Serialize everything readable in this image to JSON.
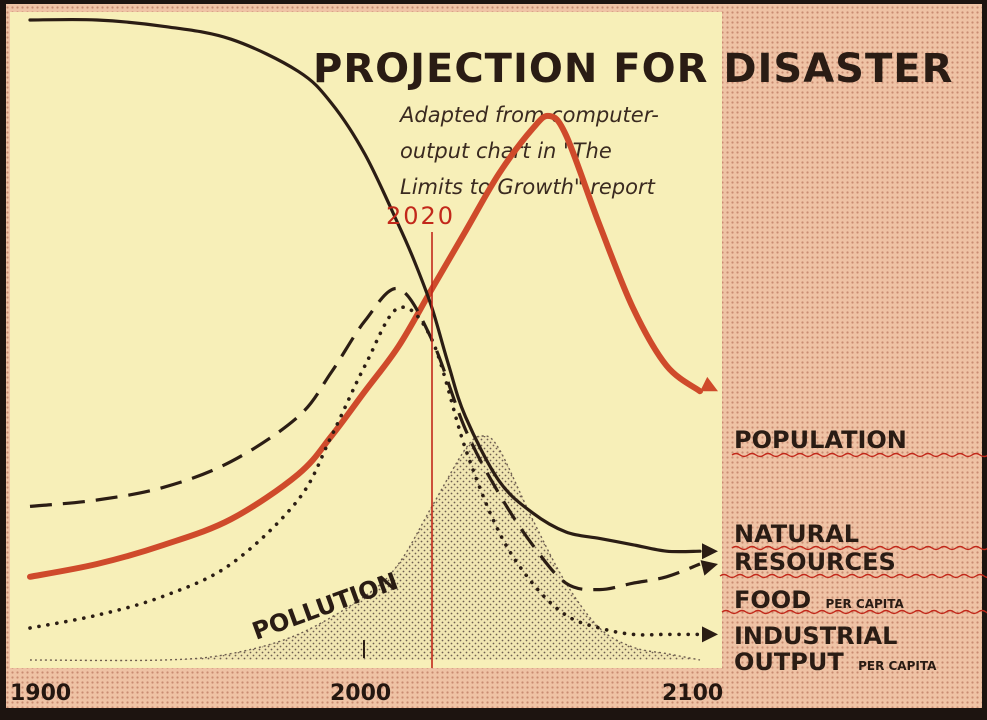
{
  "chart_data": {
    "type": "line",
    "title": "PROJECTION FOR DISASTER",
    "subtitle_lines": [
      "Adapted from computer-",
      "output chart in \"The",
      "Limits to Growth\" report"
    ],
    "x_ticks": [
      "1900",
      "2000",
      "2100"
    ],
    "xlim": [
      1900,
      2100
    ],
    "ylim": [
      0,
      1
    ],
    "grid": false,
    "annotation": {
      "text": "2020",
      "x": 2020
    },
    "series": [
      {
        "name": "POPULATION",
        "style": "solid-thick",
        "color": "#cf4a2b",
        "x": [
          1900,
          1920,
          1940,
          1960,
          1980,
          1990,
          2000,
          2010,
          2020,
          2030,
          2040,
          2050,
          2055,
          2060,
          2070,
          2080,
          2090,
          2100
        ],
        "y": [
          0.13,
          0.15,
          0.18,
          0.22,
          0.29,
          0.35,
          0.42,
          0.49,
          0.58,
          0.67,
          0.76,
          0.83,
          0.85,
          0.82,
          0.68,
          0.55,
          0.46,
          0.42
        ]
      },
      {
        "name": "NATURAL RESOURCES",
        "style": "solid",
        "color": "#2b1d14",
        "x": [
          1900,
          1920,
          1940,
          1960,
          1980,
          1990,
          2000,
          2010,
          2015,
          2020,
          2025,
          2030,
          2040,
          2050,
          2060,
          2070,
          2080,
          2090,
          2100
        ],
        "y": [
          1.0,
          1.0,
          0.99,
          0.97,
          0.92,
          0.87,
          0.79,
          0.68,
          0.62,
          0.55,
          0.46,
          0.38,
          0.28,
          0.23,
          0.2,
          0.19,
          0.18,
          0.17,
          0.17
        ]
      },
      {
        "name": "FOOD",
        "style": "dashed",
        "color": "#2b1d14",
        "x": [
          1900,
          1920,
          1940,
          1960,
          1980,
          1990,
          2000,
          2010,
          2020,
          2030,
          2040,
          2050,
          2060,
          2070,
          2080,
          2090,
          2100
        ],
        "y": [
          0.24,
          0.25,
          0.27,
          0.31,
          0.38,
          0.45,
          0.53,
          0.58,
          0.5,
          0.36,
          0.26,
          0.18,
          0.12,
          0.11,
          0.12,
          0.13,
          0.15
        ]
      },
      {
        "name": "INDUSTRIAL OUTPUT",
        "style": "dotted",
        "color": "#2b1d14",
        "x": [
          1900,
          1920,
          1940,
          1960,
          1980,
          1990,
          2000,
          2010,
          2020,
          2030,
          2040,
          2050,
          2060,
          2070,
          2080,
          2090,
          2100
        ],
        "y": [
          0.05,
          0.07,
          0.1,
          0.15,
          0.25,
          0.35,
          0.46,
          0.55,
          0.5,
          0.33,
          0.2,
          0.12,
          0.07,
          0.05,
          0.04,
          0.04,
          0.04
        ]
      },
      {
        "name": "POLLUTION",
        "style": "stippled-area",
        "color": "#7d6a5a",
        "x": [
          1900,
          1940,
          1960,
          1980,
          2000,
          2010,
          2020,
          2030,
          2035,
          2040,
          2050,
          2060,
          2070,
          2080,
          2090,
          2100
        ],
        "y": [
          0.0,
          0.0,
          0.01,
          0.04,
          0.1,
          0.15,
          0.24,
          0.33,
          0.35,
          0.33,
          0.22,
          0.12,
          0.05,
          0.02,
          0.01,
          0.0
        ]
      }
    ],
    "series_labels": {
      "population": "POPULATION",
      "resources_line1": "NATURAL",
      "resources_line2": "RESOURCES",
      "food": "FOOD",
      "food_sub": "PER CAPITA",
      "industrial_line1": "INDUSTRIAL",
      "industrial_line2": "OUTPUT",
      "industrial_sub": "PER CAPITA",
      "pollution": "POLLUTION"
    },
    "colors": {
      "paper": "#f7efb8",
      "margin": "#eebfa0",
      "ink": "#2b1d14",
      "population": "#cf4a2b",
      "annotation": "#c2281a"
    }
  }
}
